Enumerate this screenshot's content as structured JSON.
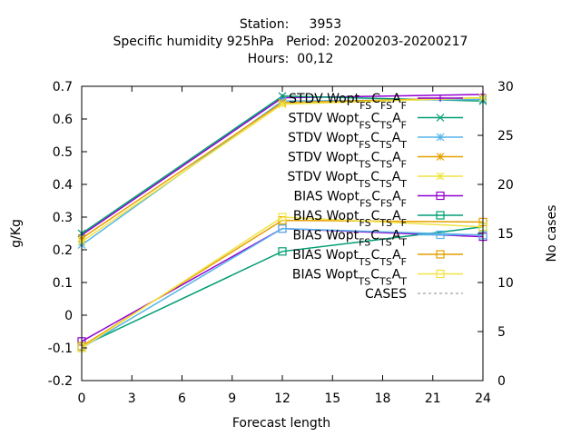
{
  "title": {
    "line1": "Station:     3953",
    "line2": "Specific humidity 925hPa   Period: 20200203-20200217",
    "line3": "Hours:  00,12"
  },
  "chart_data": {
    "type": "line",
    "xlabel": "Forecast length",
    "ylabel": "g/Kg",
    "y2label": "No cases",
    "xlim": [
      0,
      24
    ],
    "ylim": [
      -0.2,
      0.7
    ],
    "y2lim": [
      0,
      30
    ],
    "xticks": [
      "0",
      "3",
      "6",
      "9",
      "12",
      "15",
      "18",
      "21",
      "24"
    ],
    "yticks": [
      "-0.2",
      "-0.1",
      "0",
      "0.1",
      "0.2",
      "0.3",
      "0.4",
      "0.5",
      "0.6",
      "0.7"
    ],
    "y2ticks": [
      "0",
      "5",
      "10",
      "15",
      "20",
      "25",
      "30"
    ],
    "grid": false,
    "legend_position": "top-right",
    "x": [
      0,
      12,
      24
    ],
    "series": [
      {
        "name": "STDV Wopt_{FS}C_{FS}A_{F}",
        "legend_text": "STDV Wopt",
        "sub1": "FS",
        "mid": "C",
        "sub2": "FS",
        "tail": "A",
        "sub3": "F",
        "color": "#9400d3",
        "marker": "plus",
        "axis": "y1",
        "values": [
          0.245,
          0.665,
          0.675
        ]
      },
      {
        "name": "STDV Wopt_{FS}C_{TS}A_{F}",
        "legend_text": "STDV Wopt",
        "sub1": "FS",
        "mid": "C",
        "sub2": "TS",
        "tail": "A",
        "sub3": "F",
        "color": "#009e73",
        "marker": "x",
        "axis": "y1",
        "values": [
          0.25,
          0.67,
          0.655
        ]
      },
      {
        "name": "STDV Wopt_{FS}C_{TS}A_{T}",
        "legend_text": "STDV Wopt",
        "sub1": "FS",
        "mid": "C",
        "sub2": "TS",
        "tail": "A",
        "sub3": "T",
        "color": "#56b4e9",
        "marker": "star",
        "axis": "y1",
        "values": [
          0.215,
          0.655,
          0.66
        ]
      },
      {
        "name": "STDV Wopt_{TS}C_{TS}A_{F}",
        "legend_text": "STDV Wopt",
        "sub1": "TS",
        "mid": "C",
        "sub2": "TS",
        "tail": "A",
        "sub3": "F",
        "color": "#e69f00",
        "marker": "star",
        "axis": "y1",
        "values": [
          0.235,
          0.65,
          0.665
        ]
      },
      {
        "name": "STDV Wopt_{TS}C_{TS}A_{T}",
        "legend_text": "STDV Wopt",
        "sub1": "TS",
        "mid": "C",
        "sub2": "TS",
        "tail": "A",
        "sub3": "T",
        "color": "#f0e442",
        "marker": "star",
        "axis": "y1",
        "values": [
          0.225,
          0.645,
          0.665
        ]
      },
      {
        "name": "BIAS Wopt_{FS}C_{FS}A_{F}",
        "legend_text": "BIAS Wopt",
        "sub1": "FS",
        "mid": "C",
        "sub2": "FS",
        "tail": "A",
        "sub3": "F",
        "color": "#9400d3",
        "marker": "square",
        "axis": "y1",
        "values": [
          -0.08,
          0.265,
          0.24
        ]
      },
      {
        "name": "BIAS Wopt_{FS}C_{TS}A_{F}",
        "legend_text": "BIAS Wopt",
        "sub1": "FS",
        "mid": "C",
        "sub2": "TS",
        "tail": "A",
        "sub3": "F",
        "color": "#009e73",
        "marker": "square",
        "axis": "y1",
        "values": [
          -0.095,
          0.195,
          0.27
        ]
      },
      {
        "name": "BIAS Wopt_{FS}C_{TS}A_{T}",
        "legend_text": "BIAS Wopt",
        "sub1": "FS",
        "mid": "C",
        "sub2": "TS",
        "tail": "A",
        "sub3": "T",
        "color": "#56b4e9",
        "marker": "square",
        "axis": "y1",
        "values": [
          -0.1,
          0.265,
          0.245
        ]
      },
      {
        "name": "BIAS Wopt_{TS}C_{TS}A_{F}",
        "legend_text": "BIAS Wopt",
        "sub1": "TS",
        "mid": "C",
        "sub2": "TS",
        "tail": "A",
        "sub3": "F",
        "color": "#e69f00",
        "marker": "square",
        "axis": "y1",
        "values": [
          -0.095,
          0.29,
          0.285
        ]
      },
      {
        "name": "BIAS Wopt_{TS}C_{TS}A_{T}",
        "legend_text": "BIAS Wopt",
        "sub1": "TS",
        "mid": "C",
        "sub2": "TS",
        "tail": "A",
        "sub3": "T",
        "color": "#f0e442",
        "marker": "square",
        "axis": "y1",
        "values": [
          -0.1,
          0.3,
          0.27
        ]
      },
      {
        "name": "CASES",
        "legend_text": "CASES",
        "color": "#888888",
        "marker": "none",
        "dashed": true,
        "axis": "y2",
        "values": [
          30,
          30,
          30
        ]
      }
    ]
  }
}
